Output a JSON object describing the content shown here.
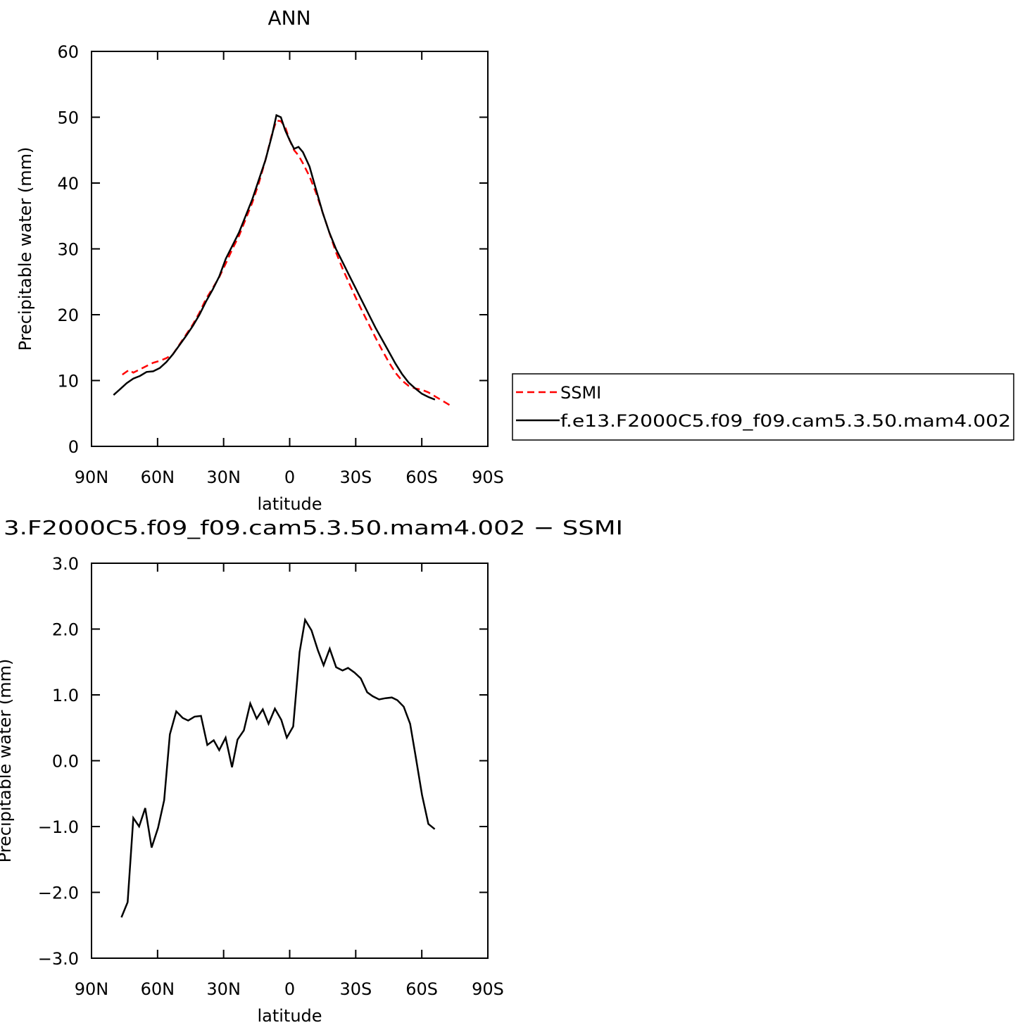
{
  "chart_data": [
    {
      "type": "line",
      "title": "ANN",
      "x_label": "latitude",
      "y_label": "Precipitable water (mm)",
      "xlim": [
        90,
        -90
      ],
      "xticks": [
        {
          "value": 90,
          "label": "90N"
        },
        {
          "value": 60,
          "label": "60N"
        },
        {
          "value": 30,
          "label": "30N"
        },
        0,
        {
          "value": -30,
          "label": "30S"
        },
        {
          "value": -60,
          "label": "60S"
        },
        {
          "value": -90,
          "label": "90S"
        }
      ],
      "ylim": [
        0,
        60
      ],
      "yticks": [
        0,
        10,
        20,
        30,
        40,
        50,
        60
      ],
      "legend": "right",
      "series": [
        {
          "name": "SSMI",
          "color": "#ff0000",
          "line_style": "dashed",
          "x": [
            76,
            73,
            71,
            68,
            65,
            62,
            59,
            56,
            53,
            50,
            47,
            44,
            41,
            38,
            35,
            32,
            29,
            26,
            23,
            20,
            17,
            14,
            11,
            8,
            6,
            4,
            2,
            0,
            -2,
            -4,
            -6,
            -9,
            -12,
            -15,
            -18,
            -21,
            -24,
            -27,
            -30,
            -33,
            -36,
            -39,
            -42,
            -45,
            -48,
            -51,
            -54,
            -57,
            -60,
            -63,
            -66,
            -69,
            -74
          ],
          "values": [
            10.9,
            11.6,
            11.2,
            11.7,
            12.2,
            12.7,
            13.0,
            13.4,
            14.0,
            15.5,
            17.0,
            18.5,
            20.3,
            22.4,
            24.0,
            25.7,
            27.8,
            30.0,
            32.0,
            34.5,
            37.0,
            40.0,
            43.5,
            47.5,
            49.5,
            49.4,
            48.5,
            46.5,
            45.0,
            44.2,
            43.0,
            41.0,
            38.5,
            35.5,
            32.5,
            29.5,
            27.0,
            24.8,
            22.6,
            20.5,
            18.5,
            16.5,
            14.6,
            12.8,
            11.2,
            10.0,
            9.2,
            8.8,
            8.6,
            8.2,
            7.6,
            7.0,
            6.0
          ]
        },
        {
          "name": "f.e13.F2000C5.f09_f09.cam5.3.50.mam4.002",
          "color": "#000000",
          "line_style": "solid",
          "x": [
            80,
            77,
            74,
            71,
            68,
            65,
            62,
            59,
            56,
            53,
            50,
            47,
            44,
            41,
            38,
            35,
            32,
            29,
            26,
            23,
            20,
            17,
            14,
            11,
            8,
            6,
            4,
            2,
            0,
            -2,
            -4,
            -6,
            -9,
            -12,
            -15,
            -18,
            -21,
            -24,
            -27,
            -30,
            -33,
            -36,
            -39,
            -42,
            -45,
            -48,
            -51,
            -54,
            -57,
            -60,
            -63,
            -66
          ],
          "values": [
            7.8,
            8.7,
            9.6,
            10.3,
            10.7,
            11.3,
            11.4,
            11.9,
            12.8,
            14.0,
            15.4,
            16.8,
            18.3,
            20.0,
            22.0,
            23.8,
            25.8,
            28.5,
            30.5,
            32.5,
            35.0,
            37.5,
            40.5,
            43.5,
            47.3,
            50.3,
            50.0,
            48.0,
            46.5,
            45.2,
            45.5,
            44.7,
            42.5,
            39.0,
            35.5,
            32.5,
            30.0,
            28.0,
            26.0,
            24.0,
            22.0,
            20.0,
            18.0,
            16.2,
            14.4,
            12.6,
            11.0,
            9.7,
            8.8,
            8.0,
            7.5,
            7.1
          ]
        }
      ]
    },
    {
      "type": "line",
      "title": "3.F2000C5.f09_f09.cam5.3.50.mam4.002 − SSMI",
      "x_label": "latitude",
      "y_label": "Precipitable water (mm)",
      "xlim": [
        90,
        -90
      ],
      "xticks": [
        {
          "value": 90,
          "label": "90N"
        },
        {
          "value": 60,
          "label": "60N"
        },
        {
          "value": 30,
          "label": "30N"
        },
        0,
        {
          "value": -30,
          "label": "30S"
        },
        {
          "value": -60,
          "label": "60S"
        },
        {
          "value": -90,
          "label": "90S"
        }
      ],
      "ylim": [
        -3,
        3
      ],
      "yticks": [
        {
          "value": -3,
          "label": "−3.0"
        },
        {
          "value": -2,
          "label": "−2.0"
        },
        {
          "value": -1,
          "label": "−1.0"
        },
        {
          "value": 0,
          "label": "0.0"
        },
        {
          "value": 1,
          "label": "1.0"
        },
        {
          "value": 2,
          "label": "2.0"
        },
        {
          "value": 3,
          "label": "3.0"
        }
      ],
      "series": [
        {
          "color": "#000000",
          "line_style": "solid",
          "x": [
            76.4,
            73.6,
            71.0,
            68.4,
            65.6,
            62.7,
            59.8,
            57.0,
            54.4,
            51.5,
            48.6,
            46.1,
            43.2,
            40.3,
            37.4,
            34.5,
            32.0,
            29.1,
            26.2,
            23.7,
            20.8,
            17.9,
            15.0,
            12.2,
            9.6,
            6.7,
            3.8,
            1.3,
            -1.6,
            -4.5,
            -7.0,
            -9.9,
            -12.8,
            -15.4,
            -18.2,
            -21.1,
            -24.0,
            -26.5,
            -29.4,
            -32.3,
            -35.2,
            -37.7,
            -40.6,
            -43.5,
            -46.4,
            -48.9,
            -51.8,
            -54.7,
            -57.2,
            -60.1,
            -63.0,
            -65.9
          ],
          "values": [
            -2.38,
            -2.15,
            -0.87,
            -1.0,
            -0.72,
            -1.32,
            -1.02,
            -0.6,
            0.4,
            0.75,
            0.65,
            0.61,
            0.67,
            0.68,
            0.24,
            0.31,
            0.16,
            0.35,
            -0.1,
            0.32,
            0.46,
            0.87,
            0.64,
            0.78,
            0.56,
            0.79,
            0.62,
            0.35,
            0.52,
            1.65,
            2.14,
            1.98,
            1.68,
            1.45,
            1.7,
            1.42,
            1.37,
            1.41,
            1.34,
            1.25,
            1.04,
            0.98,
            0.93,
            0.95,
            0.96,
            0.92,
            0.82,
            0.56,
            0.07,
            -0.52,
            -0.96,
            -1.04
          ]
        }
      ]
    }
  ]
}
